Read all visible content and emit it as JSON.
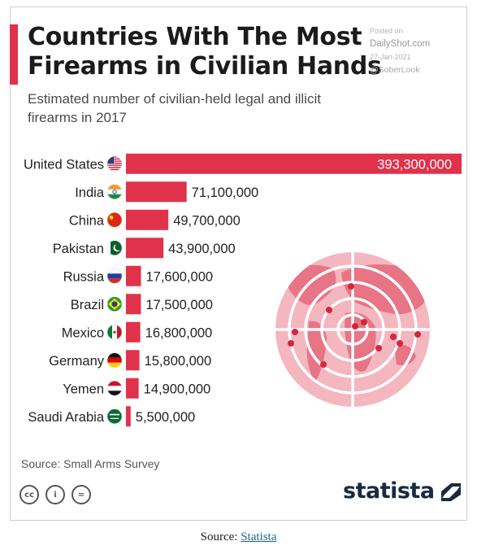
{
  "chart_data": {
    "type": "bar",
    "orientation": "horizontal",
    "title": "Countries With The Most Firearms in Civilian Hands",
    "subtitle": "Estimated number of civilian-held legal and illicit firearms in 2017",
    "categories": [
      "United States",
      "India",
      "China",
      "Pakistan",
      "Russia",
      "Brazil",
      "Mexico",
      "Germany",
      "Yemen",
      "Saudi Arabia"
    ],
    "values": [
      393300000,
      71100000,
      49700000,
      43900000,
      17600000,
      17500000,
      16800000,
      15800000,
      14900000,
      5500000
    ],
    "value_labels": [
      "393,300,000",
      "71,100,000",
      "49,700,000",
      "43,900,000",
      "17,600,000",
      "17,500,000",
      "16,800,000",
      "15,800,000",
      "14,900,000",
      "5,500,000"
    ],
    "xlim": [
      0,
      393300000
    ],
    "bar_color": "#e0324b",
    "grid": false
  },
  "watermark": {
    "line1": "Posted on",
    "line2": "DailyShot.com",
    "line3": "27-Jan-2021",
    "line4": "@SoberLook"
  },
  "source": "Source: Small Arms Survey",
  "brand": {
    "name": "statista",
    "color": "#1a2b40"
  },
  "license_icons": [
    "cc-icon",
    "attribution-icon",
    "no-derivatives-icon"
  ],
  "license_glyphs": [
    "cc",
    "i",
    "="
  ],
  "caption": {
    "prefix": "Source: ",
    "link": "Statista"
  },
  "flags": [
    "us-flag-icon",
    "india-flag-icon",
    "china-flag-icon",
    "pakistan-flag-icon",
    "russia-flag-icon",
    "brazil-flag-icon",
    "mexico-flag-icon",
    "germany-flag-icon",
    "yemen-flag-icon",
    "saudi-arabia-flag-icon"
  ]
}
